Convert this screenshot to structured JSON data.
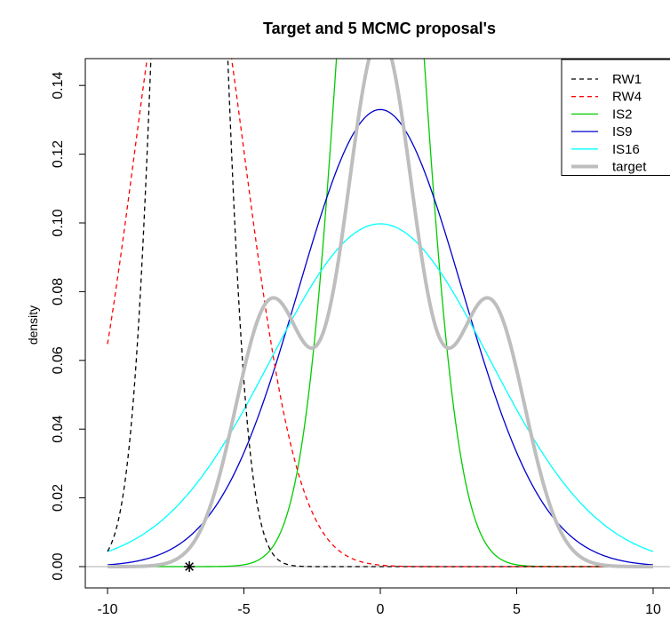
{
  "chart_data": {
    "type": "line",
    "title": "Target and 5 MCMC proposal's",
    "xlabel": "",
    "ylabel": "density",
    "xlim": [
      -10,
      10
    ],
    "ylim": [
      0,
      0.145
    ],
    "x_ticks": [
      -10,
      -5,
      0,
      5,
      10
    ],
    "y_ticks": [
      0.0,
      0.02,
      0.04,
      0.06,
      0.08,
      0.1,
      0.12,
      0.14
    ],
    "x_tick_labels": [
      "-10",
      "-5",
      "0",
      "5",
      "10"
    ],
    "y_tick_labels": [
      "0.00",
      "0.02",
      "0.04",
      "0.06",
      "0.08",
      "0.10",
      "0.12",
      "0.14"
    ],
    "legend_position": "top-right",
    "baseline": {
      "y": 0,
      "color": "#bebebe"
    },
    "marker": {
      "symbol": "asterisk",
      "x": -7,
      "y": 0,
      "color": "#000000"
    },
    "series": [
      {
        "name": "RW1",
        "color": "#000000",
        "dash": "dashed",
        "width": 1.3,
        "kind": "normal",
        "mean": -7,
        "sd": 1
      },
      {
        "name": "RW4",
        "color": "#ff0000",
        "dash": "dashed",
        "width": 1.3,
        "kind": "normal",
        "mean": -7,
        "sd": 2
      },
      {
        "name": "IS2",
        "color": "#00cd00",
        "dash": "solid",
        "width": 1.3,
        "kind": "normal",
        "mean": 0,
        "sd": 1.414
      },
      {
        "name": "IS9",
        "color": "#0000cd",
        "dash": "solid",
        "width": 1.3,
        "kind": "normal",
        "mean": 0,
        "sd": 3
      },
      {
        "name": "IS16",
        "color": "#00ffff",
        "dash": "solid",
        "width": 1.3,
        "kind": "normal",
        "mean": 0,
        "sd": 4
      },
      {
        "name": "target",
        "color": "#bebebe",
        "dash": "solid",
        "width": 4,
        "kind": "mixture",
        "components": [
          {
            "weight": 0.25,
            "mean": -4,
            "sd": 1.3
          },
          {
            "weight": 0.5,
            "mean": 0,
            "sd": 1.3
          },
          {
            "weight": 0.25,
            "mean": 4,
            "sd": 1.3
          }
        ]
      }
    ]
  }
}
